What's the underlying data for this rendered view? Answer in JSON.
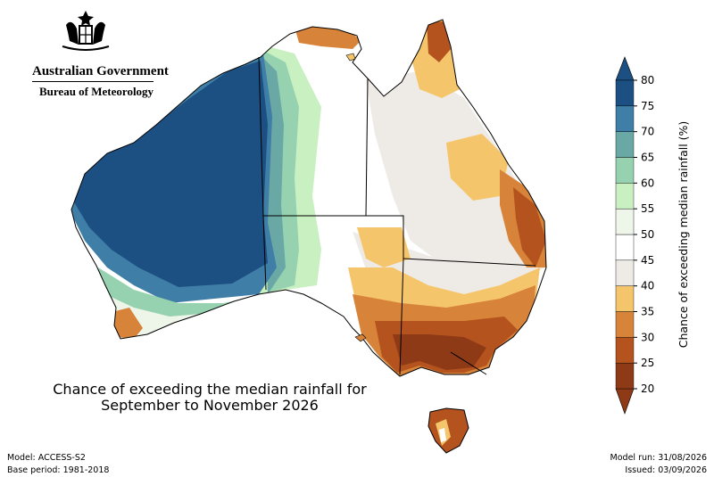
{
  "header": {
    "government": "Australian Government",
    "agency": "Bureau of Meteorology"
  },
  "map": {
    "title_line1": "Chance of exceeding the median rainfall for",
    "title_line2": "September to November 2026"
  },
  "legend": {
    "label": "Chance of exceeding median rainfall (%)",
    "ticks": [
      "20",
      "25",
      "30",
      "35",
      "40",
      "45",
      "50",
      "55",
      "60",
      "65",
      "70",
      "75",
      "80"
    ],
    "colors": [
      "#8f3a16",
      "#b5531f",
      "#d7843a",
      "#f5c56b",
      "#eeebe6",
      "#ffffff",
      "#eef6ea",
      "#c8f0c0",
      "#97d2b0",
      "#6aa8a6",
      "#3f7ea6",
      "#1c4f82"
    ]
  },
  "footer": {
    "model": "Model: ACCESS-S2",
    "base_period": "Base period: 1981-2018",
    "model_run": "Model run: 31/08/2026",
    "issued": "Issued: 03/09/2026"
  }
}
